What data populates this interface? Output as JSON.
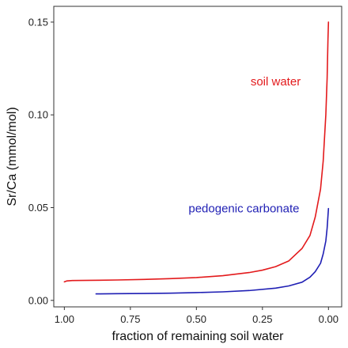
{
  "chart_data": {
    "type": "line",
    "title": "",
    "xlabel": "fraction of remaining soil water",
    "ylabel": "Sr/Ca (mmol/mol)",
    "x_reversed": true,
    "xlim": [
      1.04,
      -0.05
    ],
    "ylim": [
      -0.0035,
      0.1585
    ],
    "grid": false,
    "legend": "none",
    "x_ticks": [
      1.0,
      0.75,
      0.5,
      0.25,
      0.0
    ],
    "x_tick_labels": [
      "1.00",
      "0.75",
      "0.50",
      "0.25",
      "0.00"
    ],
    "y_ticks": [
      0.0,
      0.05,
      0.1,
      0.15
    ],
    "y_tick_labels": [
      "0.00",
      "0.05",
      "0.10",
      "0.15"
    ],
    "series": [
      {
        "color": "#e31a1c",
        "points": [
          [
            1.0,
            0.01
          ],
          [
            0.99,
            0.0105
          ],
          [
            0.97,
            0.0107
          ],
          [
            0.9,
            0.0108
          ],
          [
            0.8,
            0.011
          ],
          [
            0.7,
            0.0113
          ],
          [
            0.6,
            0.0117
          ],
          [
            0.5,
            0.0123
          ],
          [
            0.4,
            0.0133
          ],
          [
            0.3,
            0.015
          ],
          [
            0.25,
            0.0163
          ],
          [
            0.2,
            0.0182
          ],
          [
            0.15,
            0.0213
          ],
          [
            0.1,
            0.028
          ],
          [
            0.07,
            0.035
          ],
          [
            0.05,
            0.045
          ],
          [
            0.03,
            0.06
          ],
          [
            0.02,
            0.075
          ],
          [
            0.01,
            0.1
          ],
          [
            0.005,
            0.12
          ],
          [
            0.002,
            0.14
          ],
          [
            0.0,
            0.15
          ]
        ]
      },
      {
        "color": "#1f1fb4",
        "points": [
          [
            0.88,
            0.0035
          ],
          [
            0.8,
            0.0036
          ],
          [
            0.7,
            0.0037
          ],
          [
            0.6,
            0.0039
          ],
          [
            0.5,
            0.0042
          ],
          [
            0.4,
            0.0046
          ],
          [
            0.3,
            0.0053
          ],
          [
            0.2,
            0.0066
          ],
          [
            0.15,
            0.0078
          ],
          [
            0.1,
            0.0098
          ],
          [
            0.07,
            0.0125
          ],
          [
            0.05,
            0.0155
          ],
          [
            0.03,
            0.02
          ],
          [
            0.02,
            0.025
          ],
          [
            0.01,
            0.032
          ],
          [
            0.005,
            0.039
          ],
          [
            0.0,
            0.0495
          ]
        ]
      }
    ],
    "annotations": [
      {
        "text": "soil water",
        "x": 0.2,
        "y": 0.118,
        "color": "#e31a1c"
      },
      {
        "text": "pedogenic carbonate",
        "x": 0.32,
        "y": 0.0495,
        "color": "#1f1fb4"
      }
    ]
  }
}
